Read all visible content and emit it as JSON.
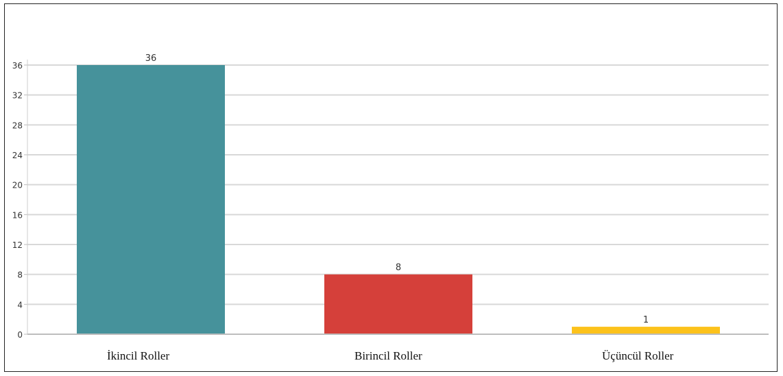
{
  "chart_data": {
    "type": "bar",
    "categories": [
      "İkincil Roller",
      "Birincil Roller",
      "Üçüncül Roller"
    ],
    "values": [
      36,
      8,
      1
    ],
    "colors": [
      "#46929B",
      "#D5403A",
      "#FCC21B"
    ],
    "yticks": [
      0,
      4,
      8,
      12,
      16,
      20,
      24,
      28,
      32,
      36
    ],
    "ylim": [
      0,
      36
    ],
    "grid": true,
    "data_labels": true,
    "title": "",
    "xlabel": "",
    "ylabel": ""
  }
}
